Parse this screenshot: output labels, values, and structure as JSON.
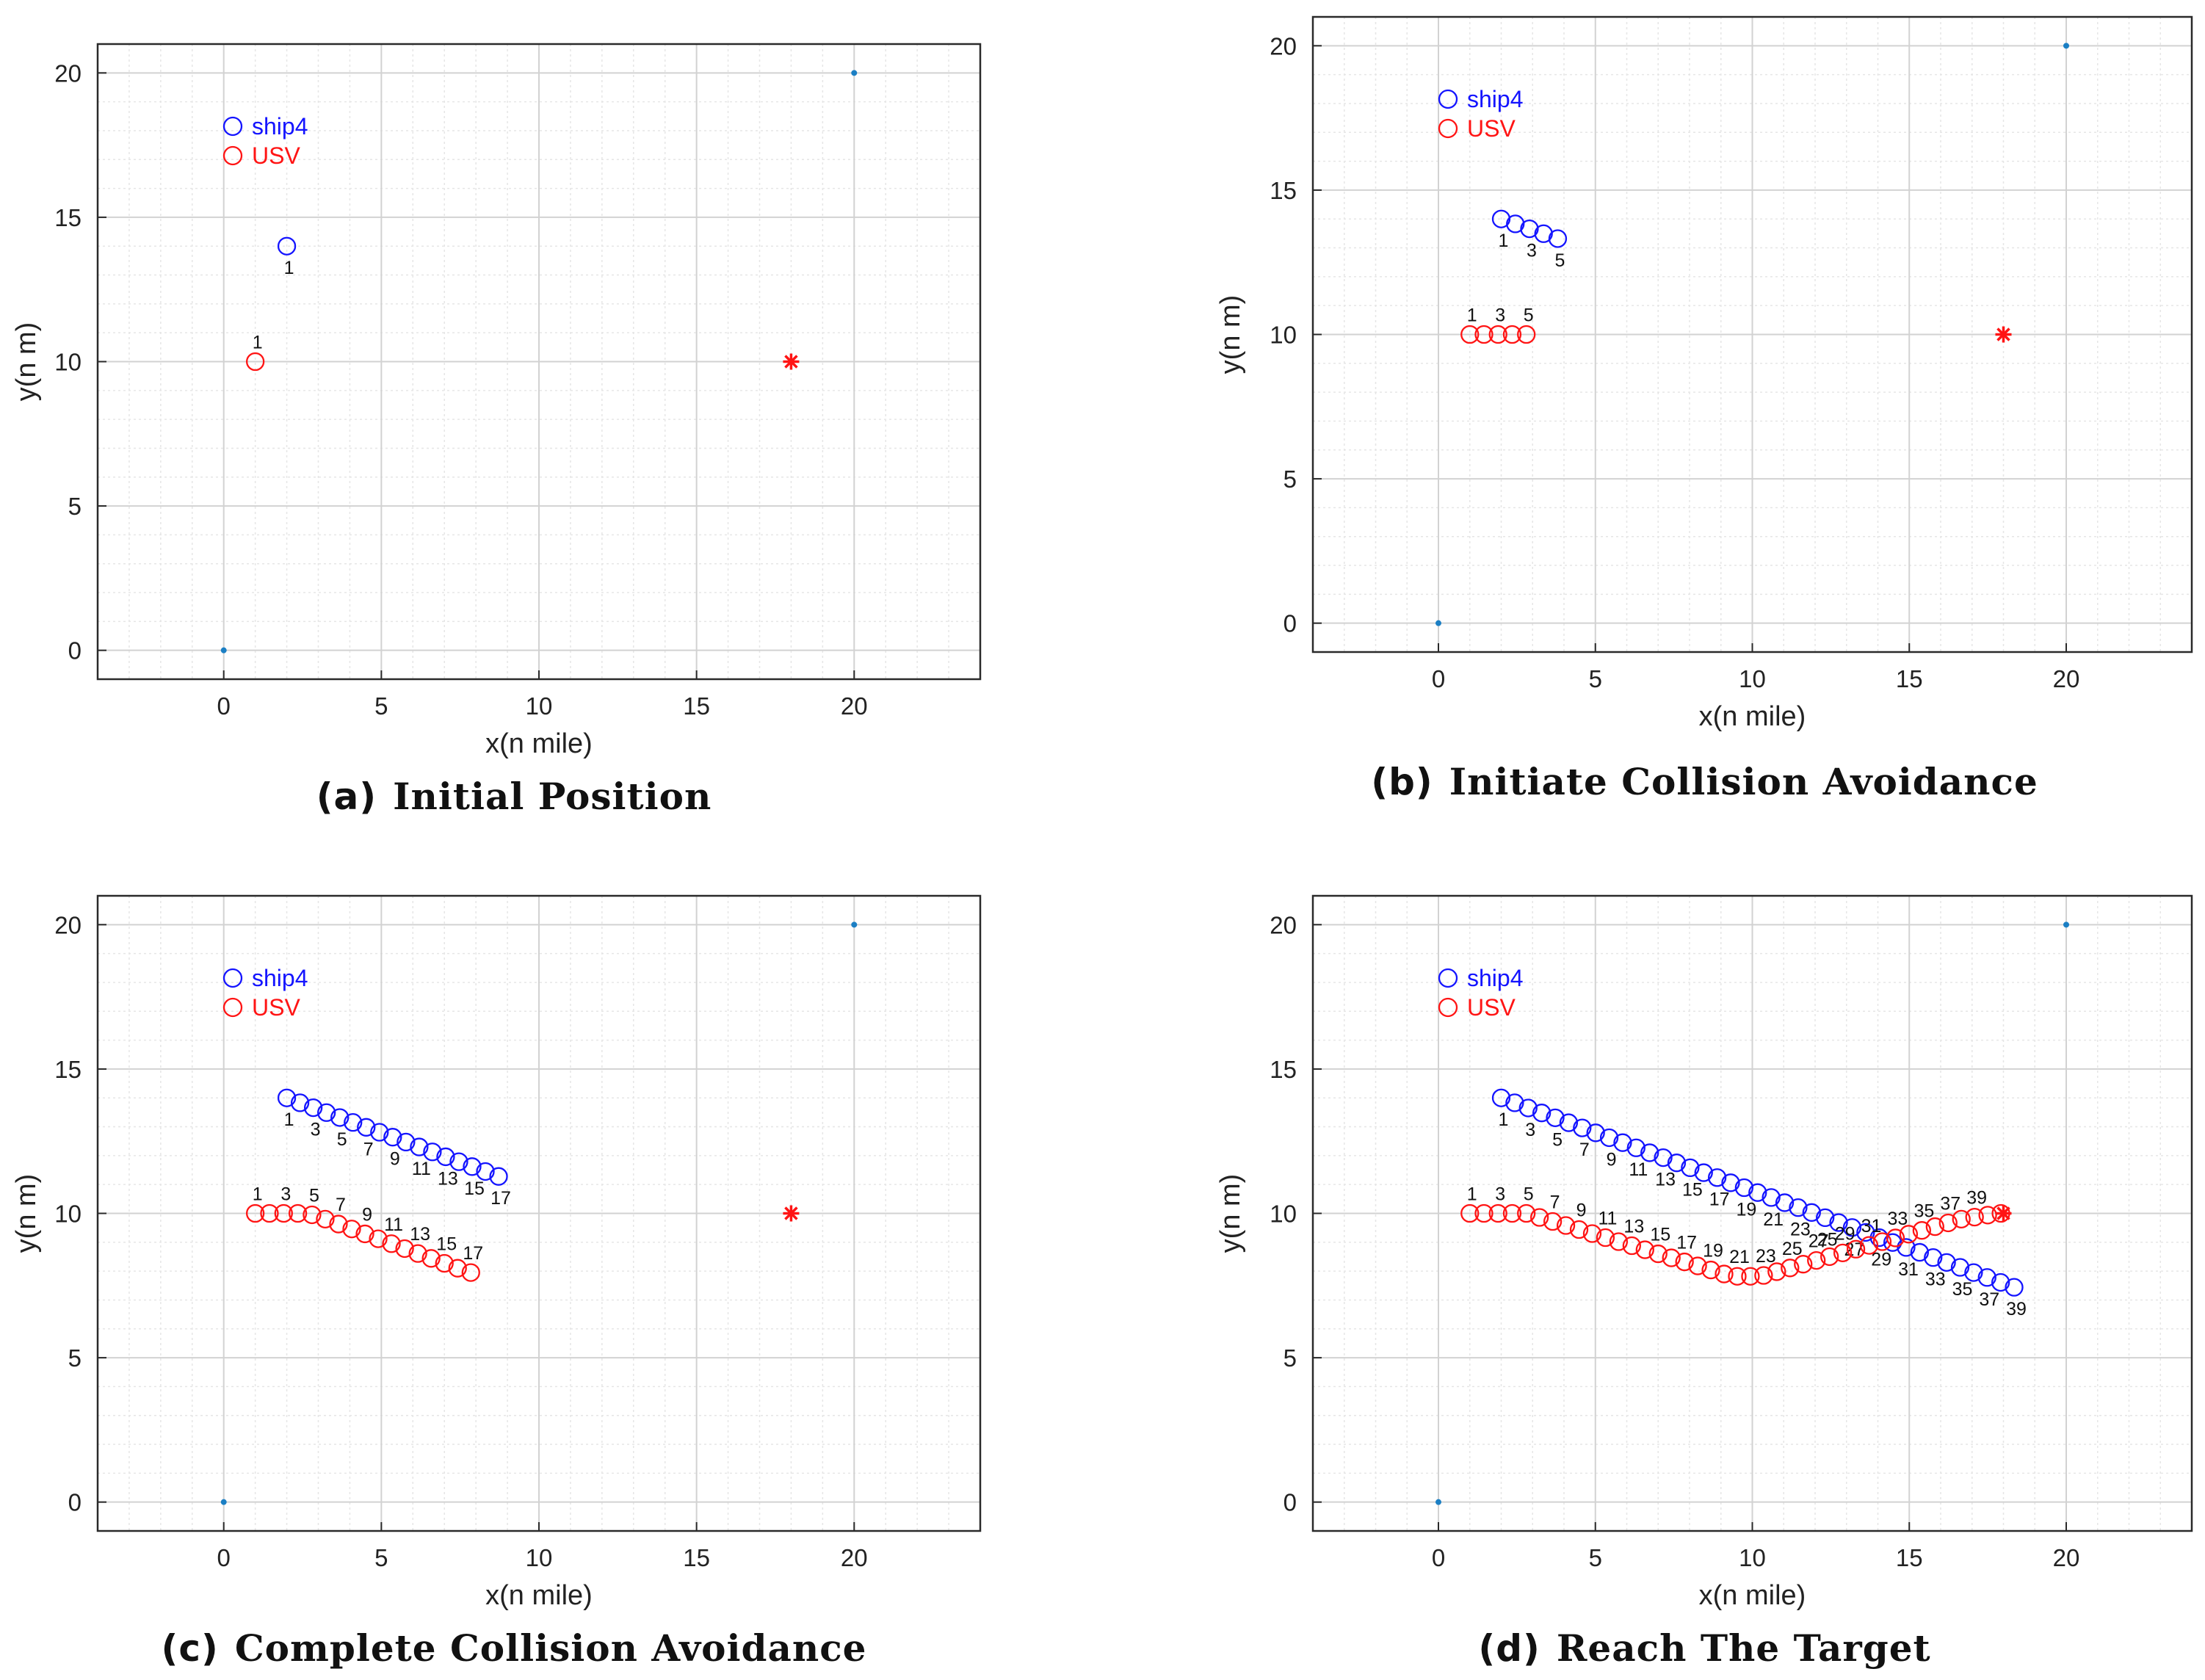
{
  "chart_data": [
    {
      "id": "a",
      "type": "scatter",
      "caption_letter": "(a)",
      "caption_title": "Initial Position",
      "xlabel": "x(n mile)",
      "ylabel": "y(n m)",
      "xlim": [
        -4,
        24
      ],
      "ylim": [
        -1,
        21
      ],
      "xticks": [
        0,
        5,
        10,
        15,
        20
      ],
      "yticks": [
        0,
        5,
        10,
        15,
        20
      ],
      "grid": "major and minor",
      "legend": [
        {
          "name": "ship4",
          "color": "#1414ff"
        },
        {
          "name": "USV",
          "color": "#ff1414"
        }
      ],
      "corner_points": [
        {
          "x": 0,
          "y": 0
        },
        {
          "x": 20,
          "y": 20
        }
      ],
      "target": {
        "x": 18,
        "y": 10
      },
      "series": [
        {
          "name": "ship4",
          "color": "#1414ff",
          "x": [
            2.0
          ],
          "y": [
            14.0
          ],
          "labels": [
            {
              "i": 0,
              "text": "1"
            }
          ]
        },
        {
          "name": "USV",
          "color": "#ff1414",
          "x": [
            1.0
          ],
          "y": [
            10.0
          ],
          "labels": [
            {
              "i": 0,
              "text": "1"
            }
          ]
        }
      ]
    },
    {
      "id": "b",
      "type": "scatter",
      "caption_letter": "(b)",
      "caption_title": "Initiate Collision Avoidance",
      "xlabel": "x(n mile)",
      "ylabel": "y(n m)",
      "xlim": [
        -4,
        24
      ],
      "ylim": [
        -1,
        21
      ],
      "xticks": [
        0,
        5,
        10,
        15,
        20
      ],
      "yticks": [
        0,
        5,
        10,
        15,
        20
      ],
      "grid": "major and minor",
      "legend": [
        {
          "name": "ship4",
          "color": "#1414ff"
        },
        {
          "name": "USV",
          "color": "#ff1414"
        }
      ],
      "corner_points": [
        {
          "x": 0,
          "y": 0
        },
        {
          "x": 20,
          "y": 20
        }
      ],
      "target": {
        "x": 18,
        "y": 10
      },
      "series": [
        {
          "name": "ship4",
          "color": "#1414ff",
          "x": [
            2.0,
            2.45,
            2.9,
            3.35,
            3.8
          ],
          "y": [
            14.0,
            13.83,
            13.66,
            13.49,
            13.32
          ],
          "labels": [
            {
              "i": 0,
              "text": "1"
            },
            {
              "i": 2,
              "text": "3"
            },
            {
              "i": 4,
              "text": "5"
            }
          ]
        },
        {
          "name": "USV",
          "color": "#ff1414",
          "x": [
            1.0,
            1.45,
            1.9,
            2.35,
            2.8
          ],
          "y": [
            10.0,
            10.0,
            10.0,
            10.0,
            10.0
          ],
          "labels": [
            {
              "i": 0,
              "text": "1"
            },
            {
              "i": 2,
              "text": "3"
            },
            {
              "i": 4,
              "text": "5"
            }
          ]
        }
      ]
    },
    {
      "id": "c",
      "type": "scatter",
      "caption_letter": "(c)",
      "caption_title": "Complete Collision Avoidance",
      "xlabel": "x(n mile)",
      "ylabel": "y(n m)",
      "xlim": [
        -4,
        24
      ],
      "ylim": [
        -1,
        21
      ],
      "xticks": [
        0,
        5,
        10,
        15,
        20
      ],
      "yticks": [
        0,
        5,
        10,
        15,
        20
      ],
      "grid": "major and minor",
      "legend": [
        {
          "name": "ship4",
          "color": "#1414ff"
        },
        {
          "name": "USV",
          "color": "#ff1414"
        }
      ],
      "corner_points": [
        {
          "x": 0,
          "y": 0
        },
        {
          "x": 20,
          "y": 20
        }
      ],
      "target": {
        "x": 18,
        "y": 10
      },
      "series": [
        {
          "name": "ship4",
          "color": "#1414ff",
          "x": [
            2.0,
            2.42,
            2.84,
            3.26,
            3.68,
            4.1,
            4.52,
            4.94,
            5.36,
            5.78,
            6.2,
            6.62,
            7.04,
            7.46,
            7.88,
            8.3,
            8.72
          ],
          "y": [
            14.0,
            13.83,
            13.66,
            13.49,
            13.32,
            13.15,
            12.98,
            12.81,
            12.64,
            12.47,
            12.3,
            12.13,
            11.96,
            11.79,
            11.62,
            11.45,
            11.28
          ],
          "labels": [
            {
              "i": 0,
              "text": "1"
            },
            {
              "i": 2,
              "text": "3"
            },
            {
              "i": 4,
              "text": "5"
            },
            {
              "i": 6,
              "text": "7"
            },
            {
              "i": 8,
              "text": "9"
            },
            {
              "i": 10,
              "text": "11"
            },
            {
              "i": 12,
              "text": "13"
            },
            {
              "i": 14,
              "text": "15"
            },
            {
              "i": 16,
              "text": "17"
            }
          ]
        },
        {
          "name": "USV",
          "color": "#ff1414",
          "x": [
            1.0,
            1.45,
            1.9,
            2.35,
            2.8,
            3.22,
            3.64,
            4.06,
            4.48,
            4.9,
            5.32,
            5.74,
            6.16,
            6.58,
            7.0,
            7.42,
            7.84
          ],
          "y": [
            10.0,
            10.0,
            10.0,
            10.0,
            9.95,
            9.8,
            9.63,
            9.46,
            9.29,
            9.12,
            8.95,
            8.78,
            8.61,
            8.44,
            8.27,
            8.1,
            7.95
          ],
          "labels": [
            {
              "i": 0,
              "text": "1"
            },
            {
              "i": 2,
              "text": "3"
            },
            {
              "i": 4,
              "text": "5"
            },
            {
              "i": 6,
              "text": "7"
            },
            {
              "i": 8,
              "text": "9"
            },
            {
              "i": 10,
              "text": "11"
            },
            {
              "i": 12,
              "text": "13"
            },
            {
              "i": 14,
              "text": "15"
            },
            {
              "i": 16,
              "text": "17"
            }
          ]
        }
      ]
    },
    {
      "id": "d",
      "type": "scatter",
      "caption_letter": "(d)",
      "caption_title": "Reach The Target",
      "xlabel": "x(n mile)",
      "ylabel": "y(n m)",
      "xlim": [
        -4,
        24
      ],
      "ylim": [
        -1,
        21
      ],
      "xticks": [
        0,
        5,
        10,
        15,
        20
      ],
      "yticks": [
        0,
        5,
        10,
        15,
        20
      ],
      "grid": "major and minor",
      "legend": [
        {
          "name": "ship4",
          "color": "#1414ff"
        },
        {
          "name": "USV",
          "color": "#ff1414"
        }
      ],
      "corner_points": [
        {
          "x": 0,
          "y": 0
        },
        {
          "x": 20,
          "y": 20
        }
      ],
      "target": {
        "x": 18,
        "y": 10
      },
      "series": [
        {
          "name": "ship4",
          "color": "#1414ff",
          "x": [
            2.0,
            2.43,
            2.86,
            3.29,
            3.72,
            4.15,
            4.58,
            5.01,
            5.44,
            5.87,
            6.3,
            6.73,
            7.16,
            7.59,
            8.02,
            8.45,
            8.88,
            9.31,
            9.74,
            10.17,
            10.6,
            11.03,
            11.46,
            11.89,
            12.32,
            12.75,
            13.18,
            13.61,
            14.04,
            14.47,
            14.9,
            15.33,
            15.76,
            16.19,
            16.62,
            17.05,
            17.48,
            17.91,
            18.34
          ],
          "y": [
            14.0,
            13.83,
            13.65,
            13.48,
            13.31,
            13.14,
            12.96,
            12.79,
            12.62,
            12.45,
            12.27,
            12.1,
            11.93,
            11.75,
            11.58,
            11.41,
            11.24,
            11.06,
            10.89,
            10.72,
            10.55,
            10.37,
            10.2,
            10.03,
            9.85,
            9.68,
            9.51,
            9.34,
            9.16,
            8.99,
            8.82,
            8.65,
            8.47,
            8.3,
            8.13,
            7.95,
            7.78,
            7.61,
            7.44
          ],
          "labels": [
            {
              "i": 0,
              "text": "1"
            },
            {
              "i": 2,
              "text": "3"
            },
            {
              "i": 4,
              "text": "5"
            },
            {
              "i": 6,
              "text": "7"
            },
            {
              "i": 8,
              "text": "9"
            },
            {
              "i": 10,
              "text": "11"
            },
            {
              "i": 12,
              "text": "13"
            },
            {
              "i": 14,
              "text": "15"
            },
            {
              "i": 16,
              "text": "17"
            },
            {
              "i": 18,
              "text": "19"
            },
            {
              "i": 20,
              "text": "21"
            },
            {
              "i": 22,
              "text": "23"
            },
            {
              "i": 24,
              "text": "25"
            },
            {
              "i": 26,
              "text": "27"
            },
            {
              "i": 28,
              "text": "29"
            },
            {
              "i": 30,
              "text": "31"
            },
            {
              "i": 32,
              "text": "33"
            },
            {
              "i": 34,
              "text": "35"
            },
            {
              "i": 36,
              "text": "37"
            },
            {
              "i": 38,
              "text": "39"
            }
          ]
        },
        {
          "name": "USV",
          "color": "#ff1414",
          "x": [
            1.0,
            1.45,
            1.9,
            2.35,
            2.8,
            3.22,
            3.64,
            4.06,
            4.48,
            4.9,
            5.32,
            5.74,
            6.16,
            6.58,
            7.0,
            7.42,
            7.84,
            8.26,
            8.68,
            9.1,
            9.52,
            9.94,
            10.36,
            10.78,
            11.2,
            11.62,
            12.04,
            12.46,
            12.88,
            13.3,
            13.72,
            14.14,
            14.56,
            14.98,
            15.4,
            15.82,
            16.24,
            16.66,
            17.08,
            17.5,
            17.92
          ],
          "y": [
            10.0,
            10.0,
            10.0,
            10.0,
            10.0,
            9.86,
            9.72,
            9.58,
            9.44,
            9.3,
            9.16,
            9.02,
            8.88,
            8.74,
            8.6,
            8.46,
            8.32,
            8.18,
            8.04,
            7.9,
            7.82,
            7.82,
            7.85,
            7.98,
            8.11,
            8.24,
            8.37,
            8.5,
            8.63,
            8.76,
            8.89,
            9.02,
            9.15,
            9.28,
            9.41,
            9.54,
            9.67,
            9.8,
            9.87,
            9.94,
            10.0
          ],
          "labels": [
            {
              "i": 0,
              "text": "1"
            },
            {
              "i": 2,
              "text": "3"
            },
            {
              "i": 4,
              "text": "5"
            },
            {
              "i": 6,
              "text": "7"
            },
            {
              "i": 8,
              "text": "9"
            },
            {
              "i": 10,
              "text": "11"
            },
            {
              "i": 12,
              "text": "13"
            },
            {
              "i": 14,
              "text": "15"
            },
            {
              "i": 16,
              "text": "17"
            },
            {
              "i": 18,
              "text": "19"
            },
            {
              "i": 20,
              "text": "21"
            },
            {
              "i": 22,
              "text": "23"
            },
            {
              "i": 24,
              "text": "25"
            },
            {
              "i": 26,
              "text": "27"
            },
            {
              "i": 28,
              "text": "29"
            },
            {
              "i": 30,
              "text": "31"
            },
            {
              "i": 32,
              "text": "33"
            },
            {
              "i": 34,
              "text": "35"
            },
            {
              "i": 36,
              "text": "37"
            },
            {
              "i": 38,
              "text": "39"
            }
          ]
        }
      ]
    }
  ]
}
